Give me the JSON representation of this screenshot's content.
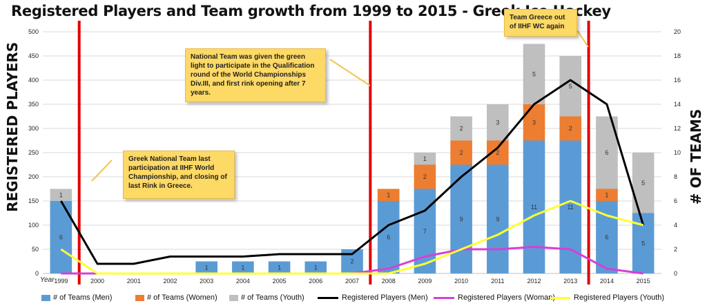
{
  "chart_data": {
    "type": "bar",
    "title": "Registered Players and Team growth from 1999 to 2015 - Greek Ice Hockey",
    "ylabel_left": "REGISTERED PLAYERS",
    "ylabel_right": "# OF TEAMS",
    "x_prefix": "Year",
    "categories": [
      "1999",
      "2000",
      "2001",
      "2002",
      "2003",
      "2004",
      "2005",
      "2006",
      "2007",
      "2008",
      "2009",
      "2010",
      "2011",
      "2012",
      "2013",
      "2014",
      "2015"
    ],
    "ylim_left": [
      0,
      500
    ],
    "ylim_right": [
      0,
      20
    ],
    "yticks_left": [
      "0",
      "50",
      "100",
      "150",
      "200",
      "250",
      "300",
      "350",
      "400",
      "450",
      "500"
    ],
    "yticks_right": [
      "0",
      "2",
      "4",
      "6",
      "8",
      "10",
      "12",
      "14",
      "16",
      "18",
      "20"
    ],
    "bar_series": [
      {
        "name": "# of Teams (Men)",
        "color": "#5b9bd5",
        "values": [
          6,
          0,
          0,
          0,
          1,
          1,
          1,
          1,
          2,
          6,
          7,
          9,
          9,
          11,
          11,
          6,
          5
        ]
      },
      {
        "name": "# of Teams (Women)",
        "color": "#ed7d31",
        "values": [
          0,
          0,
          0,
          0,
          0,
          0,
          0,
          0,
          0,
          1,
          2,
          2,
          2,
          3,
          2,
          1,
          0
        ]
      },
      {
        "name": "# of Teams (Youth)",
        "color": "#bfbfbf",
        "values": [
          1,
          0,
          0,
          0,
          0,
          0,
          0,
          0,
          0,
          0,
          1,
          2,
          3,
          5,
          5,
          6,
          5
        ]
      }
    ],
    "line_series": [
      {
        "name": "Registered Players (Men)",
        "color": "#000000",
        "values": [
          150,
          20,
          20,
          35,
          35,
          35,
          40,
          40,
          40,
          100,
          130,
          200,
          260,
          350,
          400,
          350,
          100
        ]
      },
      {
        "name": "Registered Players (Woman)",
        "color": "#d63fd6",
        "values": [
          0,
          0,
          0,
          0,
          0,
          0,
          0,
          0,
          0,
          10,
          35,
          50,
          50,
          55,
          50,
          10,
          0
        ]
      },
      {
        "name": "Registered Players (Youth)",
        "color": "#ffff33",
        "values": [
          50,
          0,
          0,
          0,
          0,
          0,
          0,
          0,
          0,
          0,
          20,
          50,
          80,
          120,
          150,
          120,
          100
        ]
      }
    ],
    "event_markers": [
      {
        "after": "1999",
        "color": "#e00000"
      },
      {
        "after": "2007",
        "color": "#e00000"
      },
      {
        "after": "2013",
        "color": "#e00000"
      }
    ],
    "annotations": [
      {
        "text": "Greek National Team last participation at IIHF World Championship, and closing of last Rink in Greece."
      },
      {
        "text": "National Team was given the green light to participate in the Qualification round of the World Championships Div.III, and first rink opening after 7 years."
      },
      {
        "text": "Team Greece out of IIHF WC again"
      }
    ],
    "grid": true,
    "legend_position": "bottom"
  }
}
